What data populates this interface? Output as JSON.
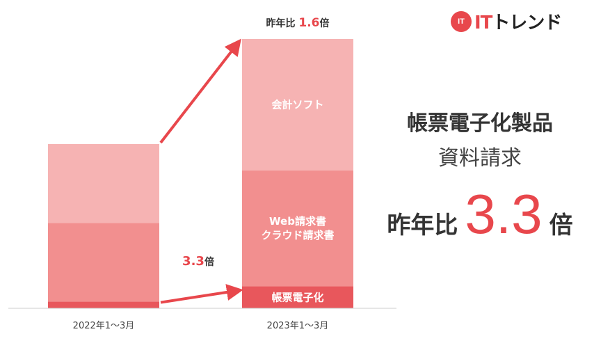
{
  "logo": {
    "mark": "IT",
    "brand_it": "IT",
    "brand_rest": "トレンド"
  },
  "summary": {
    "title": "帳票電子化製品",
    "subtitle": "資料請求",
    "ratio_prefix": "昨年比",
    "ratio_value": "3.3",
    "ratio_suffix": "倍"
  },
  "colors": {
    "light": "#f6b3b3",
    "mid": "#f28f8f",
    "dark": "#e8575c",
    "accent": "#e8474c"
  },
  "chart_data": {
    "type": "bar",
    "stacked": true,
    "categories": [
      "2022年1～3月",
      "2023年1～3月"
    ],
    "series": [
      {
        "name": "帳票電子化",
        "values": [
          3,
          10
        ]
      },
      {
        "name": "Web請求書\nクラウド請求書",
        "values": [
          36,
          53
        ]
      },
      {
        "name": "会計ソフト",
        "values": [
          36,
          60
        ]
      }
    ],
    "ylim": [
      0,
      123
    ],
    "annotations": {
      "top": {
        "prefix": "昨年比 ",
        "value": "1.6",
        "suffix": "倍"
      },
      "bottom": {
        "value": "3.3",
        "suffix": "倍"
      }
    }
  }
}
